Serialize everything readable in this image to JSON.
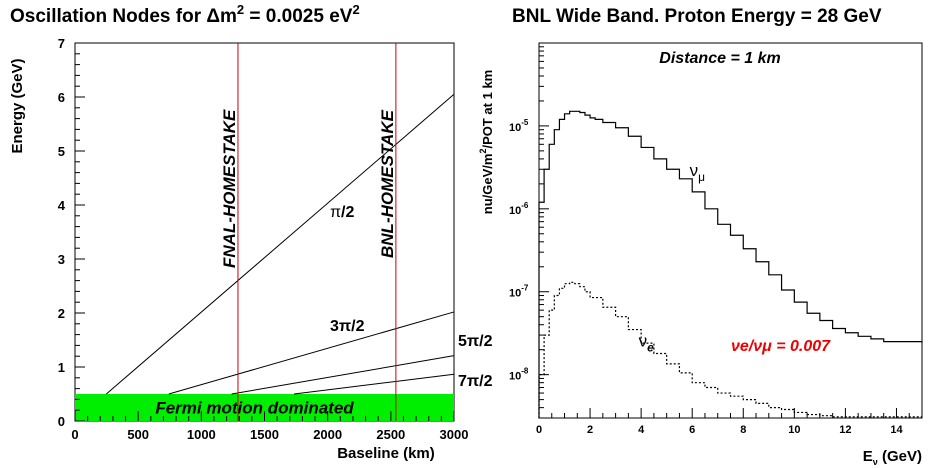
{
  "titles": {
    "left": "Oscillation Nodes for Δm",
    "left_sup": "2",
    "left_mid": " = 0.0025 eV",
    "left_sup2": "2",
    "right": "BNL Wide Band. Proton Energy = 28 GeV"
  },
  "chart_data": [
    {
      "type": "line",
      "title": "Oscillation Nodes for Δm² = 0.0025 eV²",
      "xlabel": "Baseline (km)",
      "ylabel": "Energy (GeV)",
      "xlim": [
        0,
        3000
      ],
      "ylim": [
        0,
        7
      ],
      "x_ticks": [
        "0",
        "500",
        "1000",
        "1500",
        "2000",
        "2500",
        "3000"
      ],
      "y_ticks": [
        "0",
        "1",
        "2",
        "3",
        "4",
        "5",
        "6",
        "7"
      ],
      "series": [
        {
          "name": "π/2",
          "label_main": "π",
          "label_sub": "/2",
          "x": [
            0,
            3000
          ],
          "y": [
            0,
            6.05
          ]
        },
        {
          "name": "3π/2",
          "label_main": "3π",
          "label_sub": "/2",
          "x": [
            0,
            3000
          ],
          "y": [
            0,
            2.02
          ]
        },
        {
          "name": "5π/2",
          "label_main": "5π",
          "label_sub": "/2",
          "x": [
            0,
            3000
          ],
          "y": [
            0,
            1.21
          ]
        },
        {
          "name": "7π/2",
          "label_main": "7π",
          "label_sub": "/2",
          "x": [
            0,
            3000
          ],
          "y": [
            0,
            0.865
          ]
        }
      ],
      "band": {
        "label": "Fermi motion dominated",
        "y_min": 0,
        "y_max": 0.5,
        "color": "#00ee00"
      },
      "vlines": [
        {
          "label": "FNAL-HOMESTAKE",
          "x": 1290,
          "color": "#cc0000"
        },
        {
          "label": "BNL-HOMESTAKE",
          "x": 2540,
          "color": "#cc0000"
        }
      ]
    },
    {
      "type": "line",
      "title": "BNL Wide Band. Proton Energy = 28 GeV",
      "annotation": "Distance = 1 km",
      "xlabel_main": "E",
      "xlabel_sub": "ν",
      "xlabel_unit": " (GeV)",
      "ylabel": "nu/GeV/m²/POT at 1 km",
      "ylabel_a": "nu/GeV/m",
      "ylabel_sup": "2",
      "ylabel_b": "/POT at 1 km",
      "xlim": [
        0,
        15
      ],
      "ylim": [
        3e-09,
        0.0001
      ],
      "y_scale": "log",
      "x_ticks": [
        "0",
        "2",
        "4",
        "6",
        "8",
        "10",
        "12",
        "14"
      ],
      "y_ticks": [
        {
          "base": "10",
          "exp": "-5",
          "value": 1e-05
        },
        {
          "base": "10",
          "exp": "-6",
          "value": 1e-06
        },
        {
          "base": "10",
          "exp": "-7",
          "value": 1e-07
        },
        {
          "base": "10",
          "exp": "-8",
          "value": 1e-08
        }
      ],
      "ratio_label": "νe/νμ = 0.007",
      "ratio_color": "#ee0000",
      "series": [
        {
          "name": "νμ",
          "label_main": "ν",
          "label_sub": "μ",
          "style": "solid",
          "x": [
            0,
            0.2,
            0.4,
            0.6,
            0.8,
            1.0,
            1.2,
            1.4,
            1.6,
            1.8,
            2.0,
            2.2,
            2.5,
            3.0,
            3.5,
            4.0,
            4.5,
            5.0,
            5.5,
            6.0,
            6.5,
            7.0,
            7.5,
            8.0,
            8.5,
            9.0,
            9.5,
            10.0,
            10.5,
            11.0,
            11.5,
            12.0,
            12.5,
            13.0,
            13.5,
            14.0,
            14.5,
            15.0
          ],
          "y": [
            1.2e-06,
            3e-06,
            6e-06,
            9e-06,
            1.2e-05,
            1.4e-05,
            1.5e-05,
            1.5e-05,
            1.45e-05,
            1.35e-05,
            1.25e-05,
            1.2e-05,
            1.1e-05,
            9.5e-06,
            7.5e-06,
            5.5e-06,
            4e-06,
            3e-06,
            2.3e-06,
            1.6e-06,
            1e-06,
            6.5e-07,
            4.8e-07,
            3.3e-07,
            2.3e-07,
            1.6e-07,
            1.05e-07,
            7.5e-08,
            5.5e-08,
            4.5e-08,
            3.6e-08,
            3.2e-08,
            2.9e-08,
            2.7e-08,
            2.5e-08,
            2.5e-08,
            2.5e-08,
            2.4e-08
          ]
        },
        {
          "name": "νe",
          "label_main": "ν",
          "label_sub": "e",
          "style": "dotted",
          "x": [
            0,
            0.2,
            0.4,
            0.6,
            0.8,
            1.0,
            1.2,
            1.4,
            1.6,
            1.8,
            2.0,
            2.5,
            3.0,
            3.5,
            4.0,
            4.5,
            5.0,
            5.5,
            6.0,
            6.5,
            7.0,
            7.5,
            8.0,
            8.5,
            9.0,
            9.5,
            10.0,
            10.5,
            11.0,
            11.5
          ],
          "y": [
            1e-08,
            3e-08,
            6e-08,
            9e-08,
            1.1e-07,
            1.25e-07,
            1.3e-07,
            1.25e-07,
            1.15e-07,
            1e-07,
            8.5e-08,
            6.5e-08,
            5e-08,
            3.5e-08,
            2.4e-08,
            1.8e-08,
            1.35e-08,
            1.05e-08,
            8e-09,
            7e-09,
            6e-09,
            5.5e-09,
            5e-09,
            4.5e-09,
            4e-09,
            3.8e-09,
            3.5e-09,
            3.3e-09,
            3.2e-09,
            3.1e-09
          ]
        }
      ]
    }
  ]
}
